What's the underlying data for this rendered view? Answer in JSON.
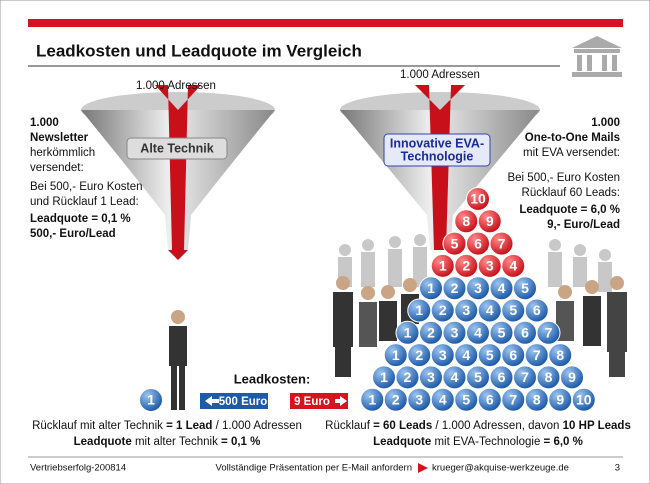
{
  "header": {
    "title": "Leadkosten und Leadquote im Vergleich"
  },
  "left": {
    "addresses": "1.000 Adressen",
    "funnel_label": [
      "Alte Technik"
    ],
    "lines": [
      {
        "text": "1.000",
        "bold": true
      },
      {
        "text": "Newsletter",
        "bold": true
      },
      {
        "text": "herkömmlich",
        "bold": false
      },
      {
        "text": "versendet:",
        "bold": false
      },
      {
        "text": "Bei 500,- Euro Kosten",
        "bold": false
      },
      {
        "text": "und Rücklauf 1 Lead:",
        "bold": false
      },
      {
        "text": "Leadquote = 0,1 %",
        "bold": true
      },
      {
        "text": "500,- Euro/Lead",
        "bold": true
      }
    ]
  },
  "right": {
    "addresses": "1.000 Adressen",
    "funnel_label": [
      "Innovative EVA-",
      "Technologie"
    ],
    "lines": [
      {
        "text": "1.000",
        "bold": true
      },
      {
        "text": "One-to-One Mails",
        "bold": true
      },
      {
        "text": "mit EVA versendet:",
        "bold": false
      },
      {
        "text": "Bei 500,- Euro Kosten",
        "bold": false
      },
      {
        "text": "Rücklauf 60 Leads:",
        "bold": false
      },
      {
        "text": "Leadquote = 6,0 %",
        "bold": true
      },
      {
        "text": "9,- Euro/Lead",
        "bold": true
      }
    ]
  },
  "lead_costs": {
    "label": "Leadkosten:",
    "old": "500 Euro",
    "new": "9 Euro"
  },
  "single_ball": 1,
  "pyramid": {
    "red_rows": [
      [
        10
      ],
      [
        8,
        9
      ],
      [
        5,
        6,
        7
      ],
      [
        1,
        2,
        3,
        4
      ]
    ],
    "blue_rows": [
      [
        1,
        2,
        3,
        4,
        5
      ],
      [
        1,
        2,
        3,
        4,
        5,
        6
      ],
      [
        1,
        2,
        3,
        4,
        5,
        6,
        7
      ],
      [
        1,
        2,
        3,
        4,
        5,
        6,
        7,
        8
      ],
      [
        1,
        2,
        3,
        4,
        5,
        6,
        7,
        8,
        9
      ],
      [
        1,
        2,
        3,
        4,
        5,
        6,
        7,
        8,
        9,
        10
      ]
    ]
  },
  "summary_left": [
    [
      {
        "text": "Rücklauf mit alter Technik ",
        "bold": false
      },
      {
        "text": "= 1 Lead",
        "bold": true
      },
      {
        "text": " / 1.000 Adressen",
        "bold": false
      }
    ],
    [
      {
        "text": "Leadquote",
        "bold": true
      },
      {
        "text": " mit alter Technik ",
        "bold": false
      },
      {
        "text": "= 0,1 %",
        "bold": true
      }
    ]
  ],
  "summary_right": [
    [
      {
        "text": "Rücklauf ",
        "bold": false
      },
      {
        "text": "= 60 Leads",
        "bold": true
      },
      {
        "text": " / 1.000 Adressen, davon ",
        "bold": false
      },
      {
        "text": "10 HP Leads",
        "bold": true
      }
    ],
    [
      {
        "text": "Leadquote",
        "bold": true
      },
      {
        "text": " mit EVA-Technologie ",
        "bold": false
      },
      {
        "text": "= 6,0 %",
        "bold": true
      }
    ]
  ],
  "footer": {
    "left": "Vertriebserfolg-200814",
    "center": "Vollständige Präsentation per E-Mail anfordern",
    "email": "krueger@akquise-werkzeuge.de",
    "page": "3"
  }
}
